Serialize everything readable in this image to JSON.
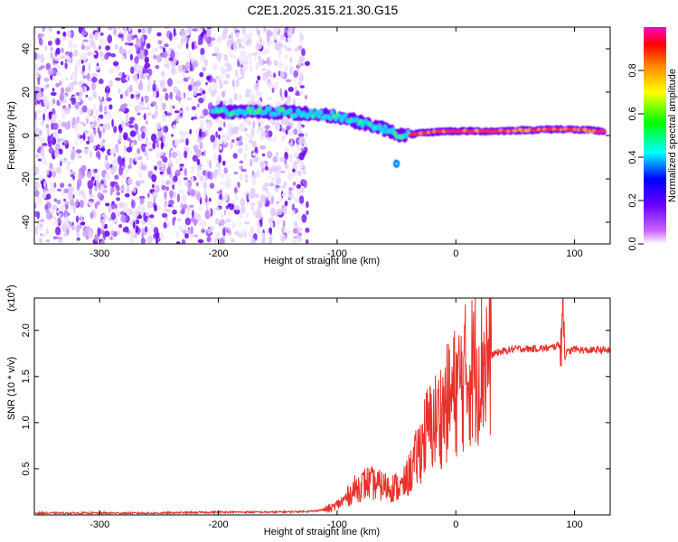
{
  "title": "C2E1.2025.315.21.30.G15",
  "chart_data": [
    {
      "type": "heatmap",
      "xlabel": "Height of straight line (km)",
      "ylabel": "Frequency (Hz)",
      "xlim": [
        -355,
        130
      ],
      "ylim": [
        -50,
        50
      ],
      "xticks": [
        -300,
        -200,
        -100,
        0,
        100
      ],
      "yticks": [
        -40,
        -20,
        0,
        20,
        40
      ],
      "colorbar": {
        "label": "Normalized spectral amplitude",
        "range": [
          0,
          1
        ],
        "ticks": [
          0.0,
          0.2,
          0.4,
          0.6,
          0.8
        ],
        "tick_labels": [
          "0.0",
          "0.2",
          "0.4",
          "0.6",
          "0.8"
        ],
        "colormap": [
          "#ffffff",
          "#cc66ff",
          "#6600ff",
          "#0000ff",
          "#00ffff",
          "#00ff00",
          "#ffff00",
          "#ff8800",
          "#ff0000",
          "#ff00cc"
        ]
      },
      "features": [
        {
          "name": "broadband noise",
          "x_range": [
            -355,
            -125
          ],
          "freq_range": [
            -50,
            50
          ]
        },
        {
          "name": "signal track",
          "x": [
            -205,
            -150,
            -100,
            -80,
            -60,
            -45,
            -30,
            -10,
            30,
            90,
            125
          ],
          "freq": [
            11,
            11,
            9,
            6,
            3,
            0,
            1,
            2,
            2,
            3,
            2
          ]
        },
        {
          "name": "isolated blob",
          "x": -50,
          "freq": -13
        }
      ]
    },
    {
      "type": "line",
      "xlabel": "Height of straight line (km)",
      "ylabel": "SNR (10 * v/v)",
      "multiplier_label": "(x10",
      "multiplier_exp": "4",
      "xlim": [
        -355,
        130
      ],
      "ylim": [
        0,
        2.35
      ],
      "xticks": [
        -300,
        -200,
        -100,
        0,
        100
      ],
      "yticks": [
        0.5,
        1.0,
        1.5,
        2.0
      ],
      "ytick_labels": [
        "0.5",
        "1.0",
        "1.5",
        "2.0"
      ],
      "series": [
        {
          "name": "SNR",
          "color": "#e8302a",
          "x": [
            -355,
            -300,
            -250,
            -200,
            -150,
            -120,
            -105,
            -95,
            -85,
            -75,
            -65,
            -55,
            -45,
            -35,
            -25,
            -15,
            -5,
            5,
            15,
            25,
            35,
            50,
            65,
            80,
            88,
            90,
            92,
            100,
            110,
            120,
            130
          ],
          "y": [
            0.02,
            0.02,
            0.02,
            0.03,
            0.03,
            0.04,
            0.07,
            0.15,
            0.28,
            0.35,
            0.32,
            0.3,
            0.3,
            0.55,
            0.9,
            1.05,
            1.25,
            1.45,
            1.6,
            1.7,
            1.76,
            1.8,
            1.8,
            1.81,
            1.85,
            2.35,
            1.75,
            1.8,
            1.78,
            1.79,
            1.78
          ]
        }
      ]
    }
  ]
}
